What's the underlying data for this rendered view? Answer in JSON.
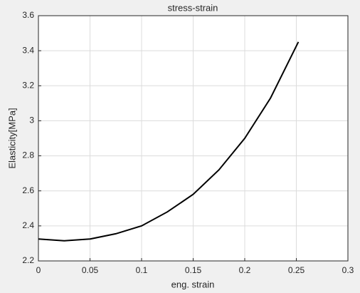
{
  "chart_data": {
    "type": "line",
    "title": "stress-strain",
    "x_label": "eng. strain",
    "y_label": "Elasticity[MPa]",
    "x": [
      0,
      0.025,
      0.05,
      0.075,
      0.1,
      0.125,
      0.15,
      0.175,
      0.2,
      0.225,
      0.252
    ],
    "series": [
      {
        "name": "Elasticity",
        "color": "#000000",
        "values": [
          2.325,
          2.315,
          2.325,
          2.355,
          2.4,
          2.48,
          2.58,
          2.72,
          2.9,
          3.13,
          3.45
        ]
      }
    ],
    "xlim": [
      0,
      0.3
    ],
    "xticks": [
      0,
      0.05,
      0.1,
      0.15,
      0.2,
      0.25,
      0.3
    ],
    "ylim": [
      2.2,
      3.6
    ],
    "yticks": [
      2.2,
      2.4,
      2.6,
      2.8,
      3,
      3.2,
      3.4,
      3.6
    ],
    "grid": true
  }
}
